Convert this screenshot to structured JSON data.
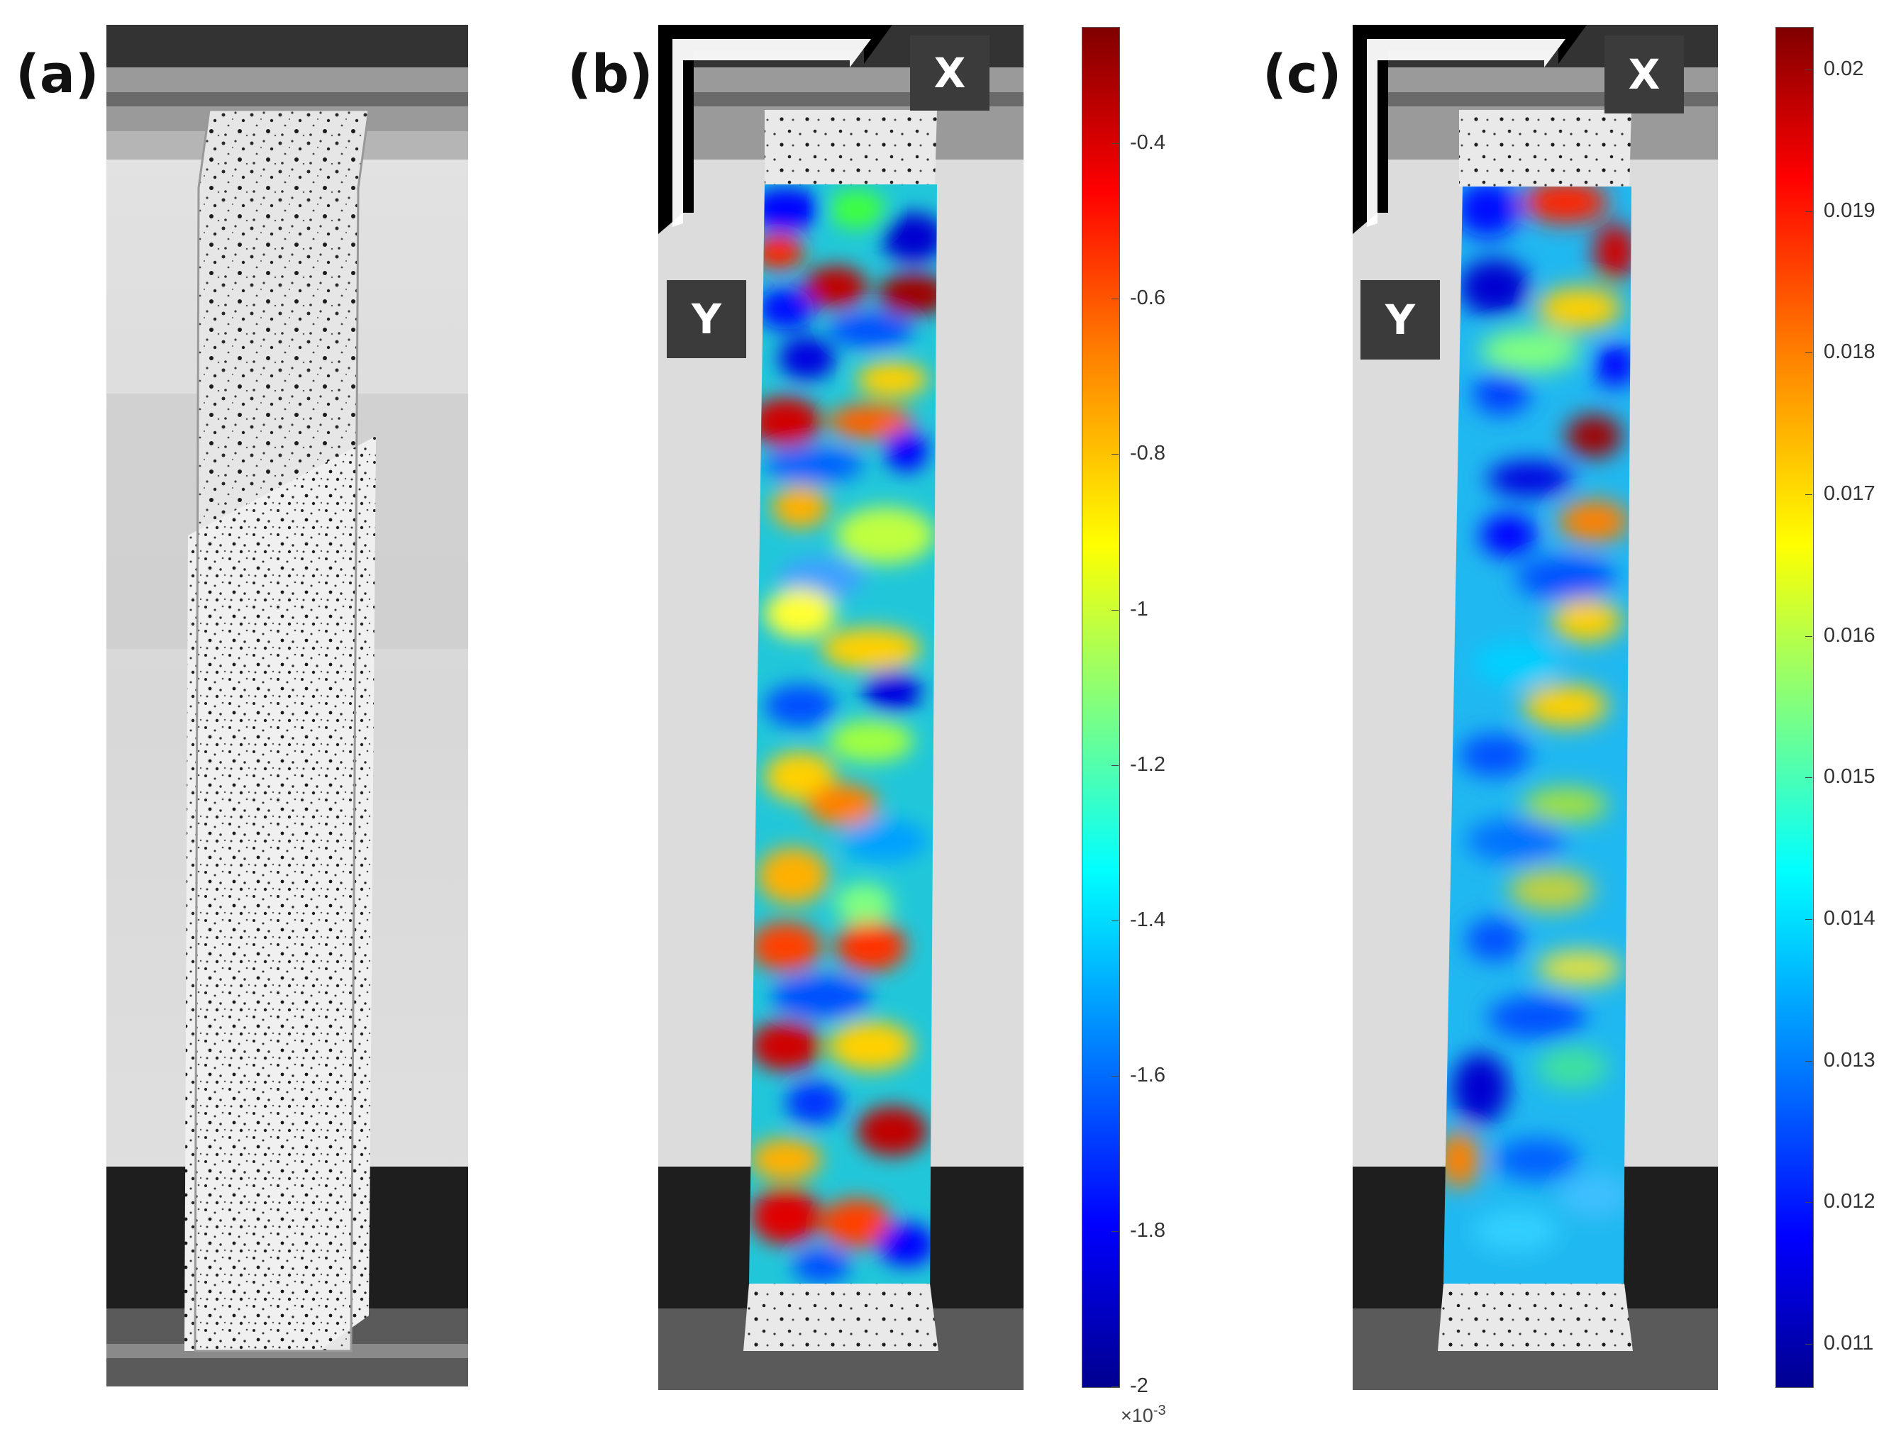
{
  "panels": {
    "a": {
      "label": "(a)"
    },
    "b": {
      "label": "(b)",
      "axis_x": "X",
      "axis_y": "Y"
    },
    "c": {
      "label": "(c)",
      "axis_x": "X",
      "axis_y": "Y"
    }
  },
  "colorbars": {
    "b": {
      "ticks": [
        "-0.4",
        "-0.6",
        "-0.8",
        "-1",
        "-1.2",
        "-1.4",
        "-1.6",
        "-1.8",
        "-2"
      ],
      "min": -2.0,
      "max": -0.25,
      "exponent_base": "×10",
      "exponent_power": "-3"
    },
    "c": {
      "ticks": [
        "0.02",
        "0.019",
        "0.018",
        "0.017",
        "0.016",
        "0.015",
        "0.014",
        "0.013",
        "0.012",
        "0.011"
      ],
      "min": 0.0107,
      "max": 0.0203
    }
  },
  "colors": {
    "jet": [
      "#00008f",
      "#0000ff",
      "#0080ff",
      "#00ffff",
      "#80ff80",
      "#ffff00",
      "#ff8000",
      "#ff0000",
      "#800000"
    ],
    "speckle_background": "#d6d6d6",
    "grip": "#2a2a2a",
    "axis_box": "#3b3b3b"
  }
}
